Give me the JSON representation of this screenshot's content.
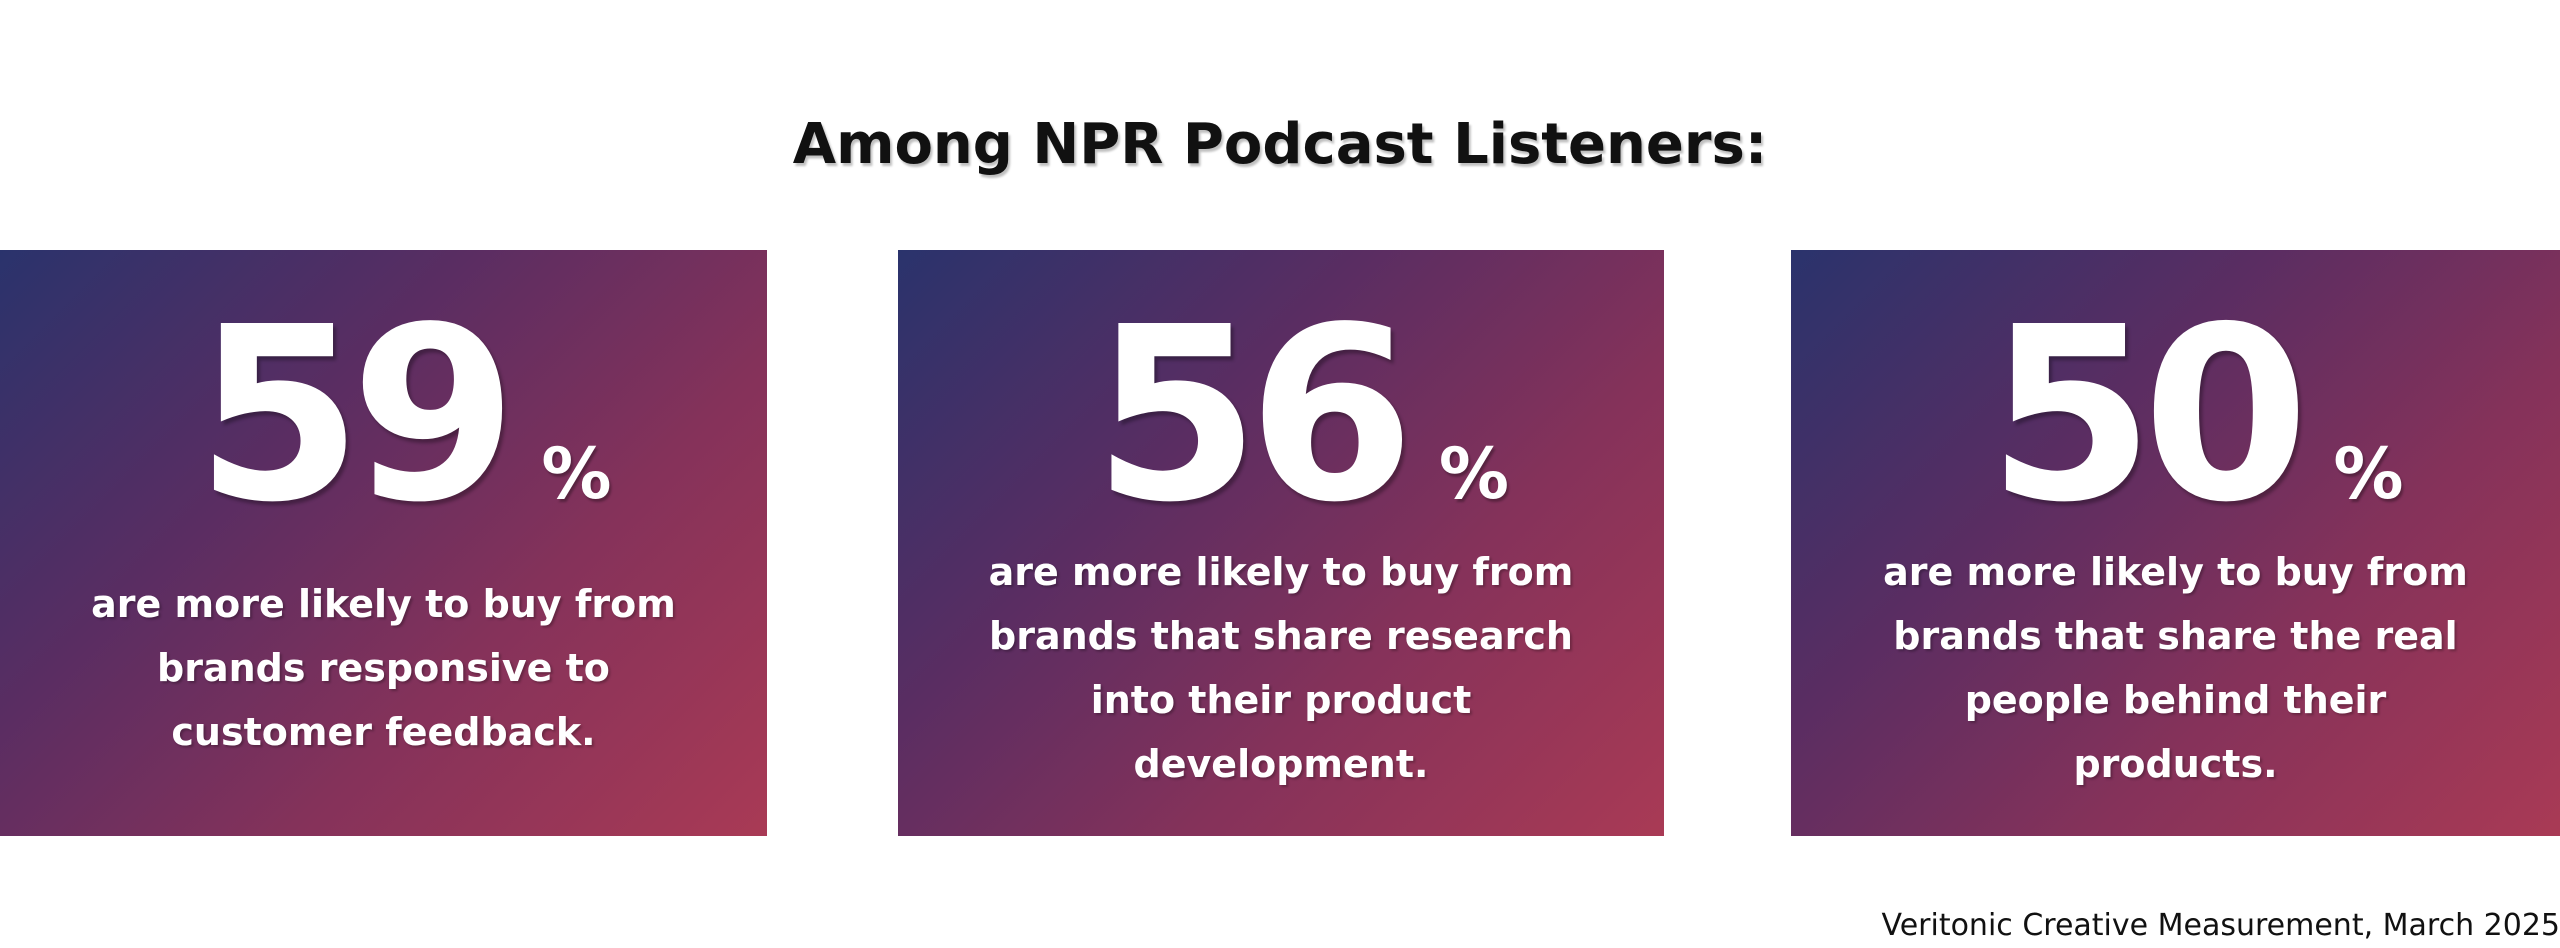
{
  "header": {
    "title": "Among NPR Podcast Listeners:"
  },
  "cards": [
    {
      "value": 59,
      "unit": "%",
      "lines": [
        "are more likely to buy from",
        "brands responsive to",
        "customer feedback."
      ]
    },
    {
      "value": 56,
      "unit": "%",
      "lines": [
        "are more likely to buy from",
        "brands that share research",
        "into their product",
        "development."
      ]
    },
    {
      "value": 50,
      "unit": "%",
      "lines": [
        "are more likely to buy from",
        "brands that share the real",
        "people behind their",
        "products."
      ]
    }
  ],
  "footer": {
    "source": "Veritonic Creative Measurement, March 2025"
  }
}
